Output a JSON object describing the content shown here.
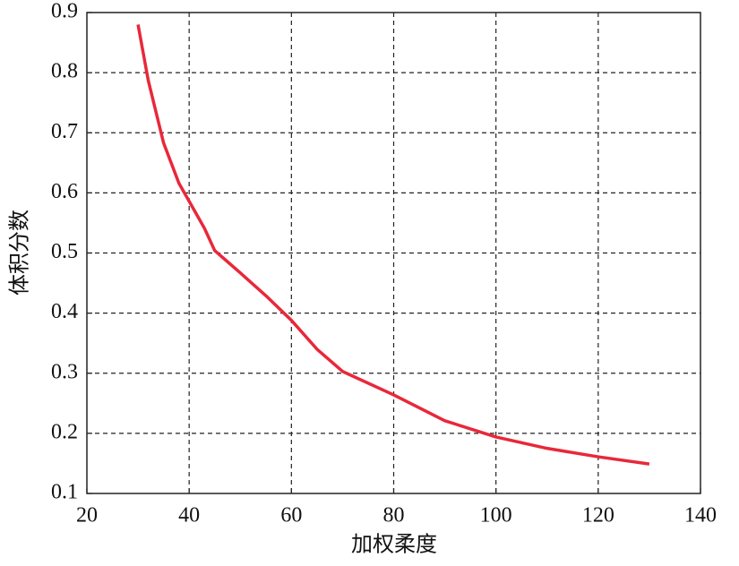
{
  "chart_data": {
    "type": "line",
    "x_label": "加权柔度",
    "y_label": "体积分数",
    "x": [
      30,
      32,
      35,
      38,
      40,
      43,
      45,
      50,
      55,
      60,
      65,
      70,
      80,
      90,
      100,
      110,
      120,
      130
    ],
    "series": [
      {
        "name": "体积分数",
        "color": "#e8283a",
        "values": [
          0.88,
          0.787,
          0.683,
          0.616,
          0.586,
          0.541,
          0.504,
          0.467,
          0.429,
          0.388,
          0.34,
          0.303,
          0.264,
          0.221,
          0.194,
          0.175,
          0.161,
          0.149
        ]
      }
    ],
    "xlim": [
      20,
      140
    ],
    "xticks": [
      20,
      40,
      60,
      80,
      100,
      120,
      140
    ],
    "ylim": [
      0.1,
      0.9
    ],
    "yticks": [
      0.1,
      0.2,
      0.3,
      0.4,
      0.5,
      0.6,
      0.7,
      0.8,
      0.9
    ],
    "grid": true
  }
}
